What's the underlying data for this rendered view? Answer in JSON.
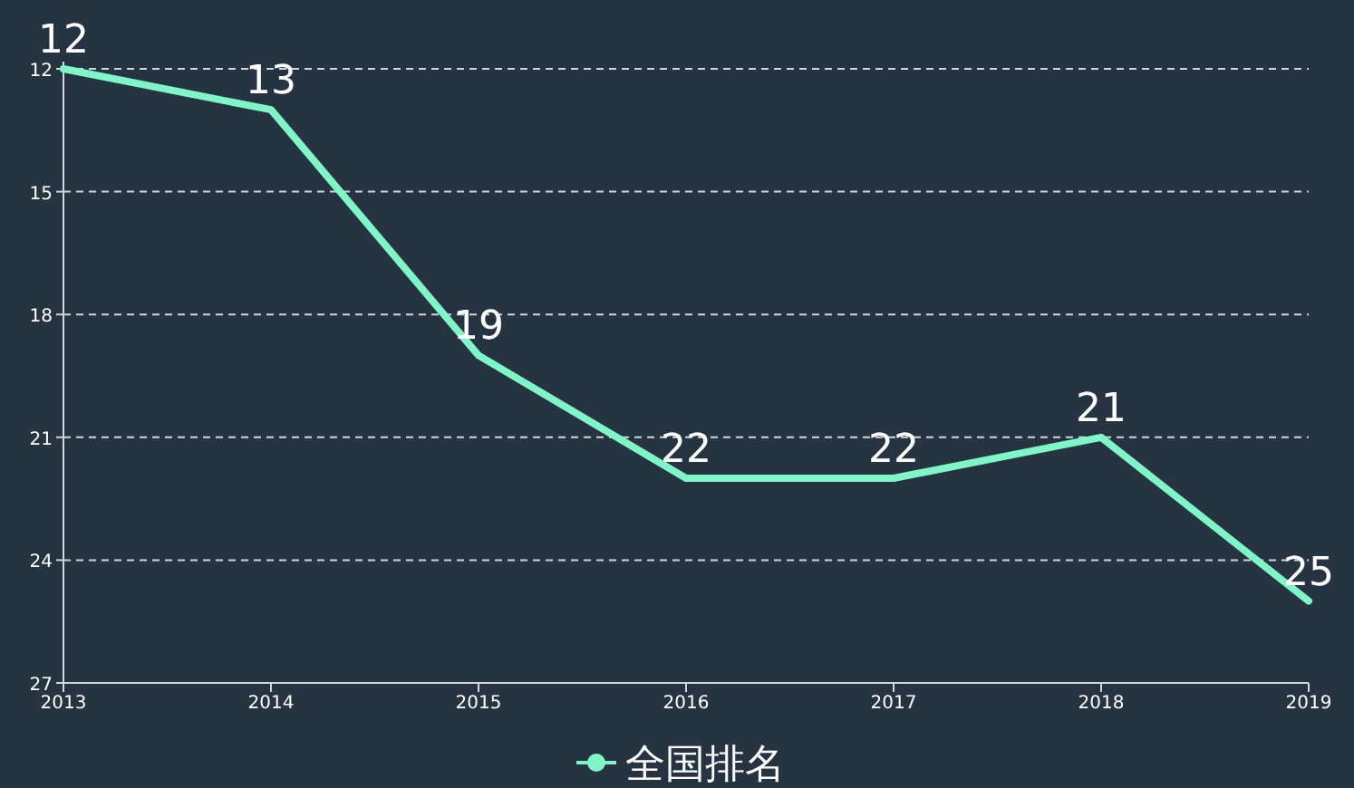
{
  "chart_data": {
    "type": "line",
    "categories": [
      "2013",
      "2014",
      "2015",
      "2016",
      "2017",
      "2018",
      "2019"
    ],
    "series": [
      {
        "name": "全国排名",
        "color": "#7ff5c8",
        "values": [
          12,
          13,
          19,
          22,
          22,
          21,
          25
        ]
      }
    ],
    "ylim": [
      27,
      12
    ],
    "yticks": [
      12,
      15,
      18,
      21,
      24,
      27
    ],
    "grid": "y",
    "legend": "bottom",
    "data_labels": true
  }
}
